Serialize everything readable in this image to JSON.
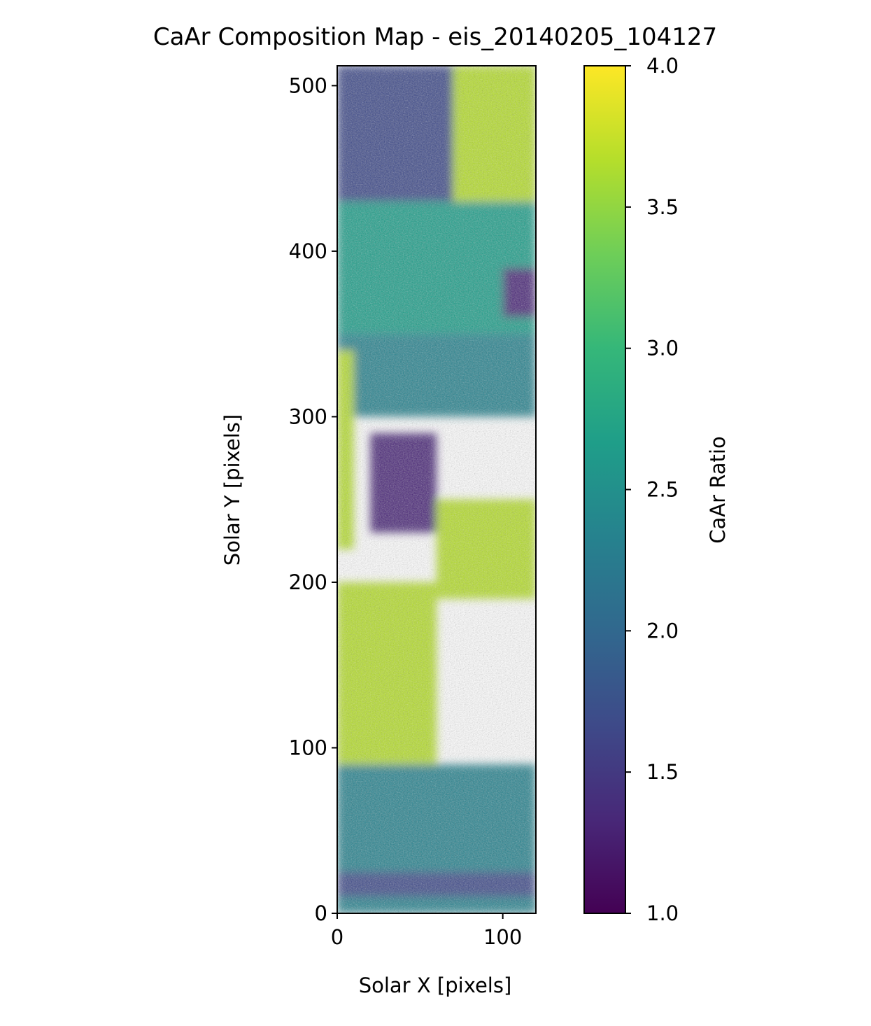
{
  "chart_data": {
    "type": "heatmap",
    "title": "CaAr Composition Map - eis_20140205_104127",
    "xlabel": "Solar X [pixels]",
    "ylabel": "Solar Y [pixels]",
    "xlim": [
      0,
      120
    ],
    "ylim": [
      0,
      512
    ],
    "x_ticks": [
      0,
      100
    ],
    "y_ticks": [
      0,
      100,
      200,
      300,
      400,
      500
    ],
    "colormap": "viridis",
    "colorbar": {
      "label": "CaAr Ratio",
      "range": [
        1.0,
        4.0
      ],
      "ticks": [
        "1.0",
        "1.5",
        "2.0",
        "2.5",
        "3.0",
        "3.5",
        "4.0"
      ],
      "tick_values": [
        1.0,
        1.5,
        2.0,
        2.5,
        3.0,
        3.5,
        4.0
      ]
    },
    "colorbar_stops": [
      "#440154",
      "#482878",
      "#3e4a89",
      "#31688e",
      "#26828e",
      "#1f9e89",
      "#35b779",
      "#6ece58",
      "#b5de2b",
      "#fde725"
    ],
    "grid": false,
    "regions": [
      {
        "x": [
          0,
          120
        ],
        "y": [
          430,
          512
        ],
        "value": 1.8
      },
      {
        "x": [
          70,
          120
        ],
        "y": [
          430,
          512
        ],
        "value": 3.6
      },
      {
        "x": [
          0,
          120
        ],
        "y": [
          350,
          430
        ],
        "value": 2.8
      },
      {
        "x": [
          100,
          120
        ],
        "y": [
          360,
          390
        ],
        "value": 1.3
      },
      {
        "x": [
          0,
          120
        ],
        "y": [
          300,
          350
        ],
        "value": 2.2
      },
      {
        "x": [
          0,
          10
        ],
        "y": [
          220,
          340
        ],
        "value": 3.8
      },
      {
        "x": [
          20,
          60
        ],
        "y": [
          230,
          290
        ],
        "value": 1.3
      },
      {
        "x": [
          60,
          120
        ],
        "y": [
          190,
          250
        ],
        "value": 3.5
      },
      {
        "x": [
          0,
          60
        ],
        "y": [
          90,
          200
        ],
        "value": 3.7
      },
      {
        "x": [
          0,
          120
        ],
        "y": [
          0,
          90
        ],
        "value": 2.4
      },
      {
        "x": [
          0,
          120
        ],
        "y": [
          10,
          25
        ],
        "value": 1.6
      }
    ]
  }
}
